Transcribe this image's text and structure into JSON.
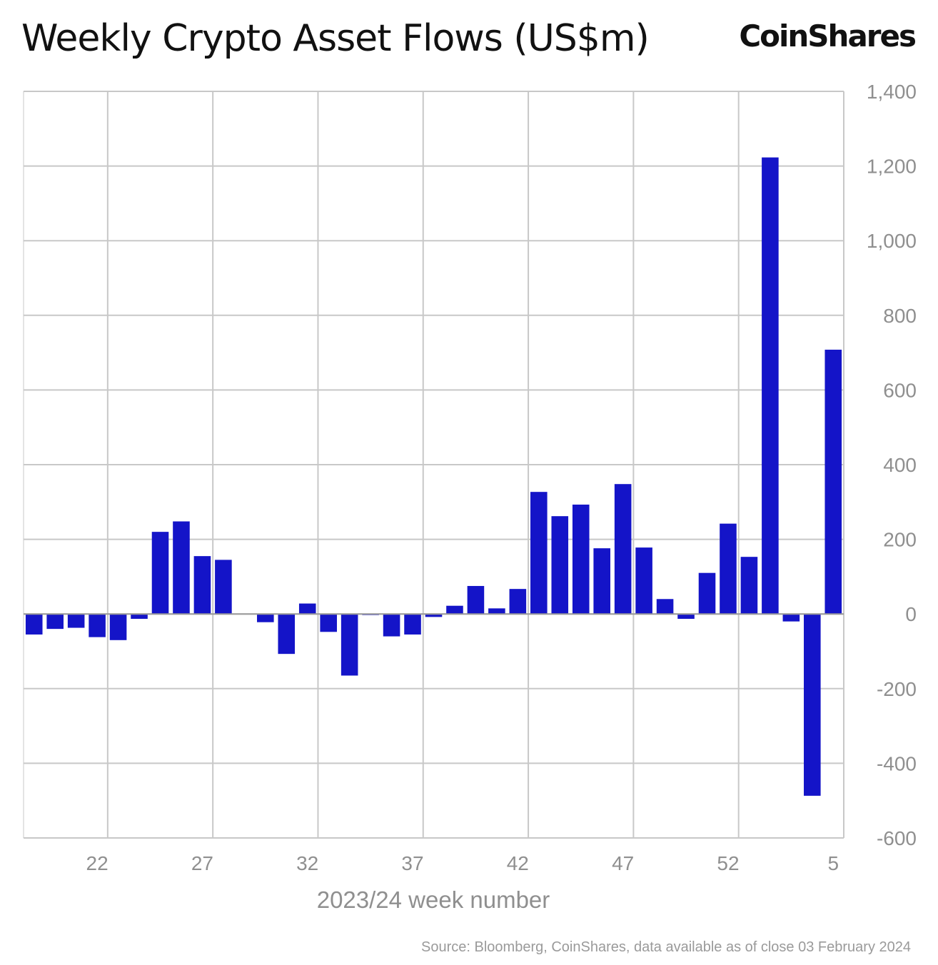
{
  "header": {
    "title": "Weekly Crypto Asset Flows (US$m)",
    "logo": "CoinShares"
  },
  "footer": {
    "source": "Source: Bloomberg, CoinShares, data available as of close 03 February 2024"
  },
  "colors": {
    "bar": "#1414c8",
    "grid": "#c8c8c8",
    "axis_text": "#8f8f8f"
  },
  "chart_data": {
    "type": "bar",
    "title": "Weekly Crypto Asset Flows (US$m)",
    "xlabel": "2023/24 week number",
    "ylabel": "",
    "ylim": [
      -600,
      1400
    ],
    "y_ticks": [
      -600,
      -400,
      -200,
      0,
      200,
      400,
      600,
      800,
      1000,
      1200,
      1400
    ],
    "y_tick_labels": [
      "-600",
      "-400",
      "-200",
      "0",
      "200",
      "400",
      "600",
      "800",
      "1,000",
      "1,200",
      "1,400"
    ],
    "y_axis_position": "right",
    "grid": true,
    "x_tick_labels": [
      "22",
      "27",
      "32",
      "37",
      "42",
      "47",
      "52",
      "5"
    ],
    "categories": [
      "19",
      "20",
      "21",
      "22",
      "23",
      "24",
      "25",
      "26",
      "27",
      "28",
      "29",
      "30",
      "31",
      "32",
      "33",
      "34",
      "35",
      "36",
      "37",
      "38",
      "39",
      "40",
      "41",
      "42",
      "43",
      "44",
      "45",
      "46",
      "47",
      "48",
      "49",
      "50",
      "51",
      "52",
      "1",
      "2",
      "3",
      "4",
      "5"
    ],
    "values": [
      -55,
      -40,
      -37,
      -62,
      -70,
      -13,
      220,
      248,
      155,
      145,
      0,
      -22,
      -107,
      28,
      -48,
      -165,
      -2,
      -60,
      -55,
      -8,
      22,
      75,
      15,
      67,
      327,
      262,
      293,
      176,
      348,
      178,
      40,
      -13,
      110,
      242,
      153,
      1223,
      -20,
      -487,
      708
    ]
  }
}
